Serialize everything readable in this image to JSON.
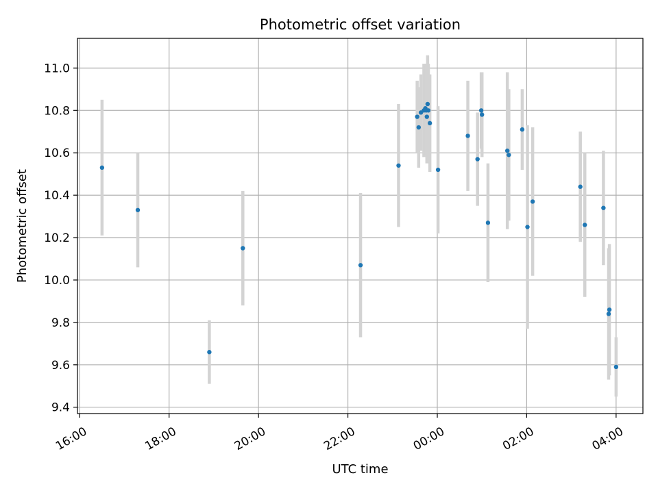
{
  "chart_data": {
    "type": "scatter",
    "title": "Photometric offset variation",
    "xlabel": "UTC time",
    "ylabel": "Photometric offset",
    "x_tick_labels": [
      "16:00",
      "18:00",
      "20:00",
      "22:00",
      "00:00",
      "02:00",
      "04:00"
    ],
    "x_tick_times": [
      "16:00",
      "18:00",
      "20:00",
      "22:00",
      "24:00",
      "26:00",
      "28:00"
    ],
    "xlim": [
      "15:57",
      "28:36"
    ],
    "y_ticks": [
      "9.4",
      "9.6",
      "9.8",
      "10.0",
      "10.2",
      "10.4",
      "10.6",
      "10.8",
      "11.0"
    ],
    "ylim": [
      9.37,
      11.14
    ],
    "grid": true,
    "marker_color": "#1f77b4",
    "errorbar_color": "#d3d3d3",
    "points": [
      {
        "t": "16:30",
        "y": 10.53,
        "err": 0.32
      },
      {
        "t": "17:18",
        "y": 10.33,
        "err": 0.27
      },
      {
        "t": "18:54",
        "y": 9.66,
        "err": 0.15
      },
      {
        "t": "19:39",
        "y": 10.15,
        "err": 0.27
      },
      {
        "t": "22:17",
        "y": 10.07,
        "err": 0.34
      },
      {
        "t": "23:08",
        "y": 10.54,
        "err": 0.29
      },
      {
        "t": "23:33",
        "y": 10.77,
        "err": 0.17
      },
      {
        "t": "23:35",
        "y": 10.72,
        "err": 0.19
      },
      {
        "t": "23:38",
        "y": 10.79,
        "err": 0.18
      },
      {
        "t": "23:42",
        "y": 10.8,
        "err": 0.22
      },
      {
        "t": "23:44",
        "y": 10.81,
        "err": 0.21
      },
      {
        "t": "23:45",
        "y": 10.8,
        "err": 0.21
      },
      {
        "t": "23:46",
        "y": 10.77,
        "err": 0.22
      },
      {
        "t": "23:47",
        "y": 10.83,
        "err": 0.23
      },
      {
        "t": "23:48",
        "y": 10.8,
        "err": 0.22
      },
      {
        "t": "23:50",
        "y": 10.74,
        "err": 0.23
      },
      {
        "t": "24:01",
        "y": 10.52,
        "err": 0.3
      },
      {
        "t": "24:41",
        "y": 10.68,
        "err": 0.26
      },
      {
        "t": "24:54",
        "y": 10.57,
        "err": 0.22
      },
      {
        "t": "24:59",
        "y": 10.8,
        "err": 0.18
      },
      {
        "t": "25:00",
        "y": 10.78,
        "err": 0.2
      },
      {
        "t": "25:08",
        "y": 10.27,
        "err": 0.28
      },
      {
        "t": "25:34",
        "y": 10.61,
        "err": 0.37
      },
      {
        "t": "25:36",
        "y": 10.59,
        "err": 0.31
      },
      {
        "t": "25:54",
        "y": 10.71,
        "err": 0.19
      },
      {
        "t": "26:01",
        "y": 10.25,
        "err": 0.48
      },
      {
        "t": "26:08",
        "y": 10.37,
        "err": 0.35
      },
      {
        "t": "27:12",
        "y": 10.44,
        "err": 0.26
      },
      {
        "t": "27:18",
        "y": 10.26,
        "err": 0.34
      },
      {
        "t": "27:43",
        "y": 10.34,
        "err": 0.27
      },
      {
        "t": "27:50",
        "y": 9.84,
        "err": 0.31
      },
      {
        "t": "27:51",
        "y": 9.86,
        "err": 0.31
      },
      {
        "t": "28:00",
        "y": 9.59,
        "err": 0.14
      }
    ]
  }
}
